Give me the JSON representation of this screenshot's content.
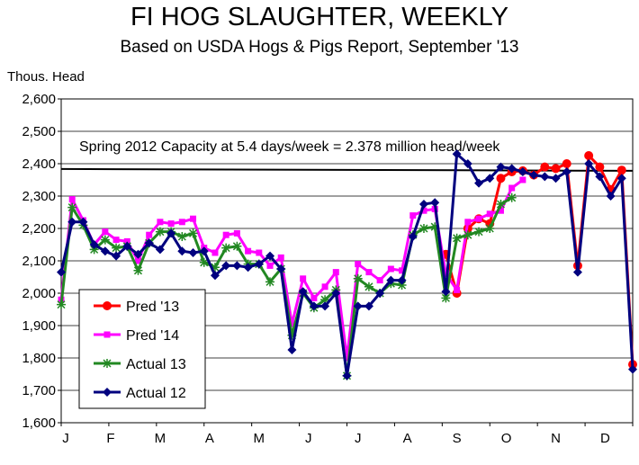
{
  "chart_data": {
    "type": "line",
    "title": "FI HOG SLAUGHTER, WEEKLY",
    "subtitle": "Based on USDA Hogs & Pigs Report, September '13",
    "ylabel": "Thous. Head",
    "ylim": [
      1600,
      2600
    ],
    "yticks": [
      1600,
      1700,
      1800,
      1900,
      2000,
      2100,
      2200,
      2300,
      2400,
      2500,
      2600
    ],
    "ytick_labels": [
      "1,600",
      "1,700",
      "1,800",
      "1,900",
      "2,000",
      "2,100",
      "2,200",
      "2,300",
      "2,400",
      "2,500",
      "2,600"
    ],
    "xlim": [
      1,
      53
    ],
    "month_labels": [
      {
        "label": "J",
        "week": 1
      },
      {
        "label": "F",
        "week": 5.5
      },
      {
        "label": "M",
        "week": 10
      },
      {
        "label": "A",
        "week": 14.5
      },
      {
        "label": "M",
        "week": 19
      },
      {
        "label": "J",
        "week": 23.5
      },
      {
        "label": "J",
        "week": 28
      },
      {
        "label": "A",
        "week": 32.5
      },
      {
        "label": "S",
        "week": 37
      },
      {
        "label": "O",
        "week": 41.5
      },
      {
        "label": "N",
        "week": 46
      },
      {
        "label": "D",
        "week": 50.5
      }
    ],
    "grid": "horizontal",
    "legend_position": "bottom-left",
    "reference_line": {
      "value": 2378,
      "label": "Spring 2012 Capacity at 5.4 days/week = 2.378 million head/week"
    },
    "series": [
      {
        "name": "Pred '13",
        "color": "#ff0000",
        "marker": "circle",
        "points": [
          [
            36,
            2120
          ],
          [
            37,
            2000
          ],
          [
            38,
            2200
          ],
          [
            39,
            2230
          ],
          [
            40,
            2215
          ],
          [
            41,
            2355
          ],
          [
            42,
            2375
          ],
          [
            43,
            2378
          ],
          [
            44,
            2365
          ],
          [
            45,
            2390
          ],
          [
            46,
            2385
          ],
          [
            47,
            2400
          ],
          [
            48,
            2085
          ],
          [
            49,
            2425
          ],
          [
            50,
            2390
          ],
          [
            51,
            2320
          ],
          [
            52,
            2380
          ],
          [
            53,
            1780
          ]
        ]
      },
      {
        "name": "Pred '14",
        "color": "#ff00ff",
        "marker": "square",
        "points": [
          [
            1,
            1980
          ],
          [
            2,
            2290
          ],
          [
            3,
            2225
          ],
          [
            4,
            2150
          ],
          [
            5,
            2190
          ],
          [
            6,
            2165
          ],
          [
            7,
            2160
          ],
          [
            8,
            2100
          ],
          [
            9,
            2180
          ],
          [
            10,
            2220
          ],
          [
            11,
            2215
          ],
          [
            12,
            2220
          ],
          [
            13,
            2230
          ],
          [
            14,
            2140
          ],
          [
            15,
            2125
          ],
          [
            16,
            2180
          ],
          [
            17,
            2185
          ],
          [
            18,
            2130
          ],
          [
            19,
            2125
          ],
          [
            20,
            2085
          ],
          [
            21,
            2110
          ],
          [
            22,
            1905
          ],
          [
            23,
            2045
          ],
          [
            24,
            1985
          ],
          [
            25,
            2020
          ],
          [
            26,
            2065
          ],
          [
            27,
            1800
          ],
          [
            28,
            2090
          ],
          [
            29,
            2065
          ],
          [
            30,
            2040
          ],
          [
            31,
            2075
          ],
          [
            32,
            2070
          ],
          [
            33,
            2240
          ],
          [
            34,
            2255
          ],
          [
            35,
            2260
          ],
          [
            36,
            2060
          ],
          [
            37,
            2010
          ],
          [
            38,
            2220
          ],
          [
            39,
            2230
          ],
          [
            40,
            2245
          ],
          [
            41,
            2255
          ],
          [
            42,
            2325
          ],
          [
            43,
            2350
          ]
        ]
      },
      {
        "name": "Actual 13",
        "color": "#228822",
        "marker": "star",
        "points": [
          [
            1,
            1965
          ],
          [
            2,
            2265
          ],
          [
            3,
            2210
          ],
          [
            4,
            2135
          ],
          [
            5,
            2165
          ],
          [
            6,
            2140
          ],
          [
            7,
            2145
          ],
          [
            8,
            2070
          ],
          [
            9,
            2155
          ],
          [
            10,
            2190
          ],
          [
            11,
            2190
          ],
          [
            12,
            2175
          ],
          [
            13,
            2185
          ],
          [
            14,
            2095
          ],
          [
            15,
            2080
          ],
          [
            16,
            2140
          ],
          [
            17,
            2145
          ],
          [
            18,
            2090
          ],
          [
            19,
            2090
          ],
          [
            20,
            2035
          ],
          [
            21,
            2075
          ],
          [
            22,
            1870
          ],
          [
            23,
            2000
          ],
          [
            24,
            1955
          ],
          [
            25,
            1980
          ],
          [
            26,
            2010
          ],
          [
            27,
            1745
          ],
          [
            28,
            2045
          ],
          [
            29,
            2020
          ],
          [
            30,
            2000
          ],
          [
            31,
            2030
          ],
          [
            32,
            2025
          ],
          [
            33,
            2180
          ],
          [
            34,
            2200
          ],
          [
            35,
            2205
          ],
          [
            36,
            1985
          ],
          [
            37,
            2170
          ],
          [
            38,
            2180
          ],
          [
            39,
            2190
          ],
          [
            40,
            2200
          ],
          [
            41,
            2275
          ],
          [
            42,
            2295
          ]
        ]
      },
      {
        "name": "Actual 12",
        "color": "#00007f",
        "marker": "diamond",
        "points": [
          [
            1,
            2065
          ],
          [
            2,
            2220
          ],
          [
            3,
            2220
          ],
          [
            4,
            2150
          ],
          [
            5,
            2130
          ],
          [
            6,
            2115
          ],
          [
            7,
            2145
          ],
          [
            8,
            2120
          ],
          [
            9,
            2155
          ],
          [
            10,
            2135
          ],
          [
            11,
            2185
          ],
          [
            12,
            2130
          ],
          [
            13,
            2125
          ],
          [
            14,
            2130
          ],
          [
            15,
            2055
          ],
          [
            16,
            2085
          ],
          [
            17,
            2085
          ],
          [
            18,
            2080
          ],
          [
            19,
            2090
          ],
          [
            20,
            2115
          ],
          [
            21,
            2075
          ],
          [
            22,
            1825
          ],
          [
            23,
            2005
          ],
          [
            24,
            1960
          ],
          [
            25,
            1960
          ],
          [
            26,
            2000
          ],
          [
            27,
            1745
          ],
          [
            28,
            1960
          ],
          [
            29,
            1960
          ],
          [
            30,
            2000
          ],
          [
            31,
            2040
          ],
          [
            32,
            2040
          ],
          [
            33,
            2175
          ],
          [
            34,
            2275
          ],
          [
            35,
            2280
          ],
          [
            36,
            2005
          ],
          [
            37,
            2430
          ],
          [
            38,
            2400
          ],
          [
            39,
            2340
          ],
          [
            40,
            2355
          ],
          [
            41,
            2390
          ],
          [
            42,
            2385
          ],
          [
            43,
            2375
          ],
          [
            44,
            2365
          ],
          [
            45,
            2360
          ],
          [
            46,
            2355
          ],
          [
            47,
            2375
          ],
          [
            48,
            2065
          ],
          [
            49,
            2400
          ],
          [
            50,
            2360
          ],
          [
            51,
            2300
          ],
          [
            52,
            2355
          ],
          [
            53,
            1765
          ]
        ]
      }
    ]
  }
}
